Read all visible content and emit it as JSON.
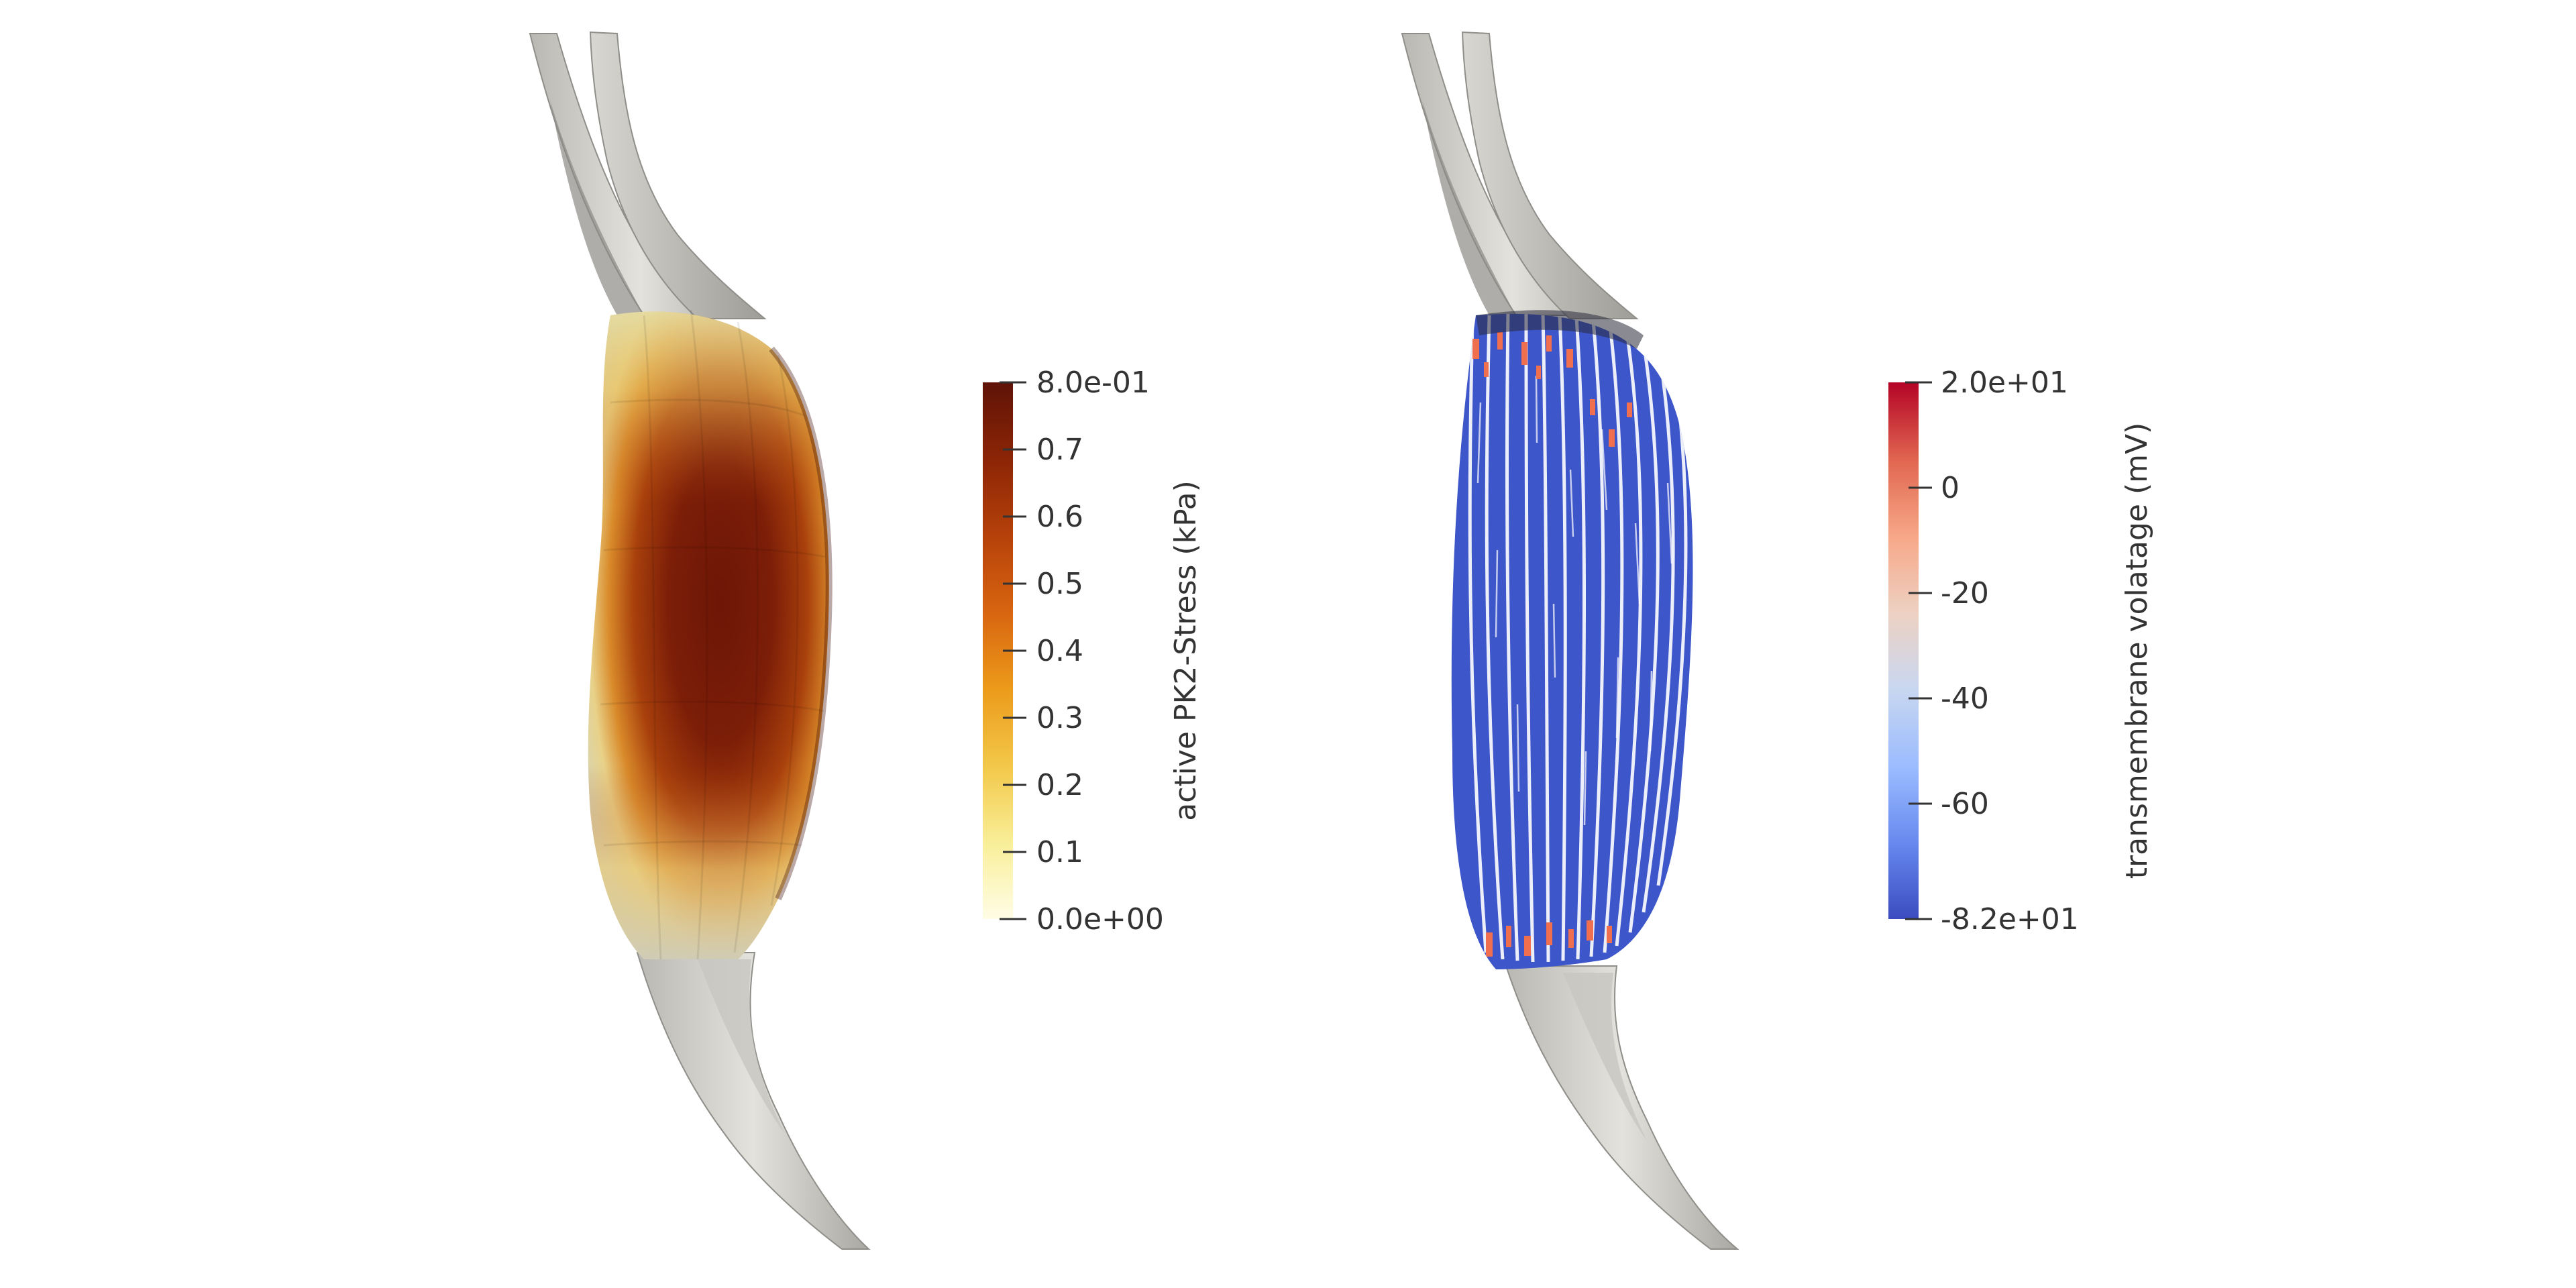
{
  "panels": {
    "left": {
      "colorbar": {
        "title": "active PK2-Stress (kPa)",
        "ticks": [
          "8.0e-01",
          "0.7",
          "0.6",
          "0.5",
          "0.4",
          "0.3",
          "0.2",
          "0.1",
          "0.0e+00"
        ],
        "colormap": "yellow-orange-brown (YlOrBr)",
        "colors": [
          "#fffde6",
          "#f9ef9a",
          "#f3c94b",
          "#ec9a1a",
          "#d86510",
          "#b7420a",
          "#8e2606",
          "#5f1307"
        ],
        "range": [
          0.0,
          0.8
        ]
      }
    },
    "right": {
      "colorbar": {
        "title": "transmembrane volatage (mV)",
        "ticks": [
          "2.0e+01",
          "0",
          "-20",
          "-40",
          "-60",
          "-8.2e+01"
        ],
        "colormap": "cool-to-warm (blue-white-red)",
        "colors": [
          "#3b4cc0",
          "#6788ee",
          "#9abbff",
          "#c9d7f0",
          "#edd1c2",
          "#f7a889",
          "#e26952",
          "#b40426"
        ],
        "range": [
          -82,
          20
        ]
      }
    }
  },
  "tendon_color": "#d9d8d3",
  "fiber_color": "#3d56c9",
  "fiber_tip_color": "#ef6f4f"
}
